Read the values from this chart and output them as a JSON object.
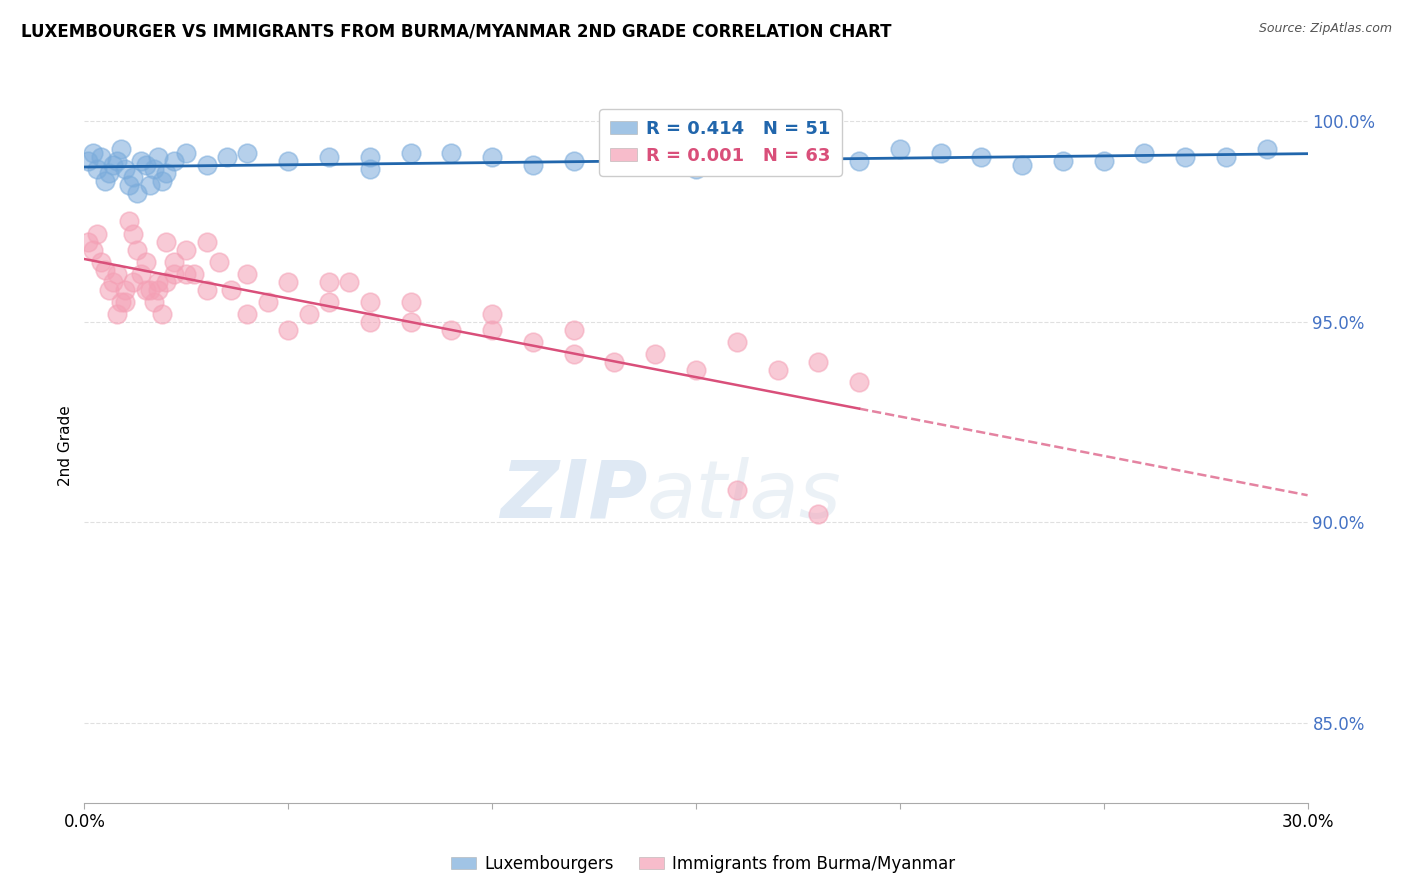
{
  "title": "LUXEMBOURGER VS IMMIGRANTS FROM BURMA/MYANMAR 2ND GRADE CORRELATION CHART",
  "source": "Source: ZipAtlas.com",
  "ylabel": "2nd Grade",
  "blue_label": "Luxembourgers",
  "pink_label": "Immigrants from Burma/Myanmar",
  "blue_R": 0.414,
  "blue_N": 51,
  "pink_R": 0.001,
  "pink_N": 63,
  "xlim": [
    0.0,
    0.3
  ],
  "ylim": [
    0.83,
    1.008
  ],
  "xticks": [
    0.0,
    0.05,
    0.1,
    0.15,
    0.2,
    0.25,
    0.3
  ],
  "yticks": [
    0.85,
    0.9,
    0.95,
    1.0
  ],
  "ytick_labels": [
    "85.0%",
    "90.0%",
    "95.0%",
    "100.0%"
  ],
  "blue_color": "#7aabdb",
  "pink_color": "#f4a0b5",
  "blue_line_color": "#2166ac",
  "pink_line_color": "#d94f7a",
  "grid_color": "#cccccc",
  "watermark_zip": "ZIP",
  "watermark_atlas": "atlas",
  "blue_x": [
    0.001,
    0.002,
    0.003,
    0.004,
    0.005,
    0.006,
    0.007,
    0.008,
    0.009,
    0.01,
    0.011,
    0.012,
    0.013,
    0.014,
    0.015,
    0.016,
    0.017,
    0.018,
    0.019,
    0.02,
    0.022,
    0.025,
    0.03,
    0.035,
    0.04,
    0.05,
    0.06,
    0.07,
    0.08,
    0.1,
    0.12,
    0.14,
    0.16,
    0.18,
    0.2,
    0.22,
    0.24,
    0.26,
    0.28,
    0.29,
    0.25,
    0.27,
    0.23,
    0.21,
    0.19,
    0.17,
    0.15,
    0.13,
    0.11,
    0.09,
    0.07
  ],
  "blue_y": [
    0.99,
    0.992,
    0.988,
    0.991,
    0.985,
    0.987,
    0.989,
    0.99,
    0.993,
    0.988,
    0.984,
    0.986,
    0.982,
    0.99,
    0.989,
    0.984,
    0.988,
    0.991,
    0.985,
    0.987,
    0.99,
    0.992,
    0.989,
    0.991,
    0.992,
    0.99,
    0.991,
    0.988,
    0.992,
    0.991,
    0.99,
    0.992,
    0.991,
    0.989,
    0.993,
    0.991,
    0.99,
    0.992,
    0.991,
    0.993,
    0.99,
    0.991,
    0.989,
    0.992,
    0.99,
    0.991,
    0.988,
    0.99,
    0.989,
    0.992,
    0.991
  ],
  "pink_x": [
    0.001,
    0.002,
    0.003,
    0.004,
    0.005,
    0.006,
    0.007,
    0.008,
    0.009,
    0.01,
    0.011,
    0.012,
    0.013,
    0.014,
    0.015,
    0.016,
    0.017,
    0.018,
    0.019,
    0.02,
    0.022,
    0.025,
    0.027,
    0.03,
    0.033,
    0.036,
    0.04,
    0.045,
    0.05,
    0.055,
    0.06,
    0.065,
    0.07,
    0.08,
    0.09,
    0.1,
    0.11,
    0.12,
    0.13,
    0.14,
    0.15,
    0.16,
    0.17,
    0.18,
    0.19,
    0.06,
    0.07,
    0.08,
    0.1,
    0.12,
    0.03,
    0.04,
    0.05,
    0.02,
    0.025,
    0.015,
    0.01,
    0.008,
    0.012,
    0.018,
    0.022,
    0.16,
    0.18
  ],
  "pink_y": [
    0.97,
    0.968,
    0.972,
    0.965,
    0.963,
    0.958,
    0.96,
    0.962,
    0.955,
    0.958,
    0.975,
    0.972,
    0.968,
    0.962,
    0.965,
    0.958,
    0.955,
    0.96,
    0.952,
    0.97,
    0.965,
    0.968,
    0.962,
    0.97,
    0.965,
    0.958,
    0.962,
    0.955,
    0.96,
    0.952,
    0.955,
    0.96,
    0.95,
    0.955,
    0.948,
    0.952,
    0.945,
    0.948,
    0.94,
    0.942,
    0.938,
    0.945,
    0.938,
    0.94,
    0.935,
    0.96,
    0.955,
    0.95,
    0.948,
    0.942,
    0.958,
    0.952,
    0.948,
    0.96,
    0.962,
    0.958,
    0.955,
    0.952,
    0.96,
    0.958,
    0.962,
    0.908,
    0.902
  ]
}
